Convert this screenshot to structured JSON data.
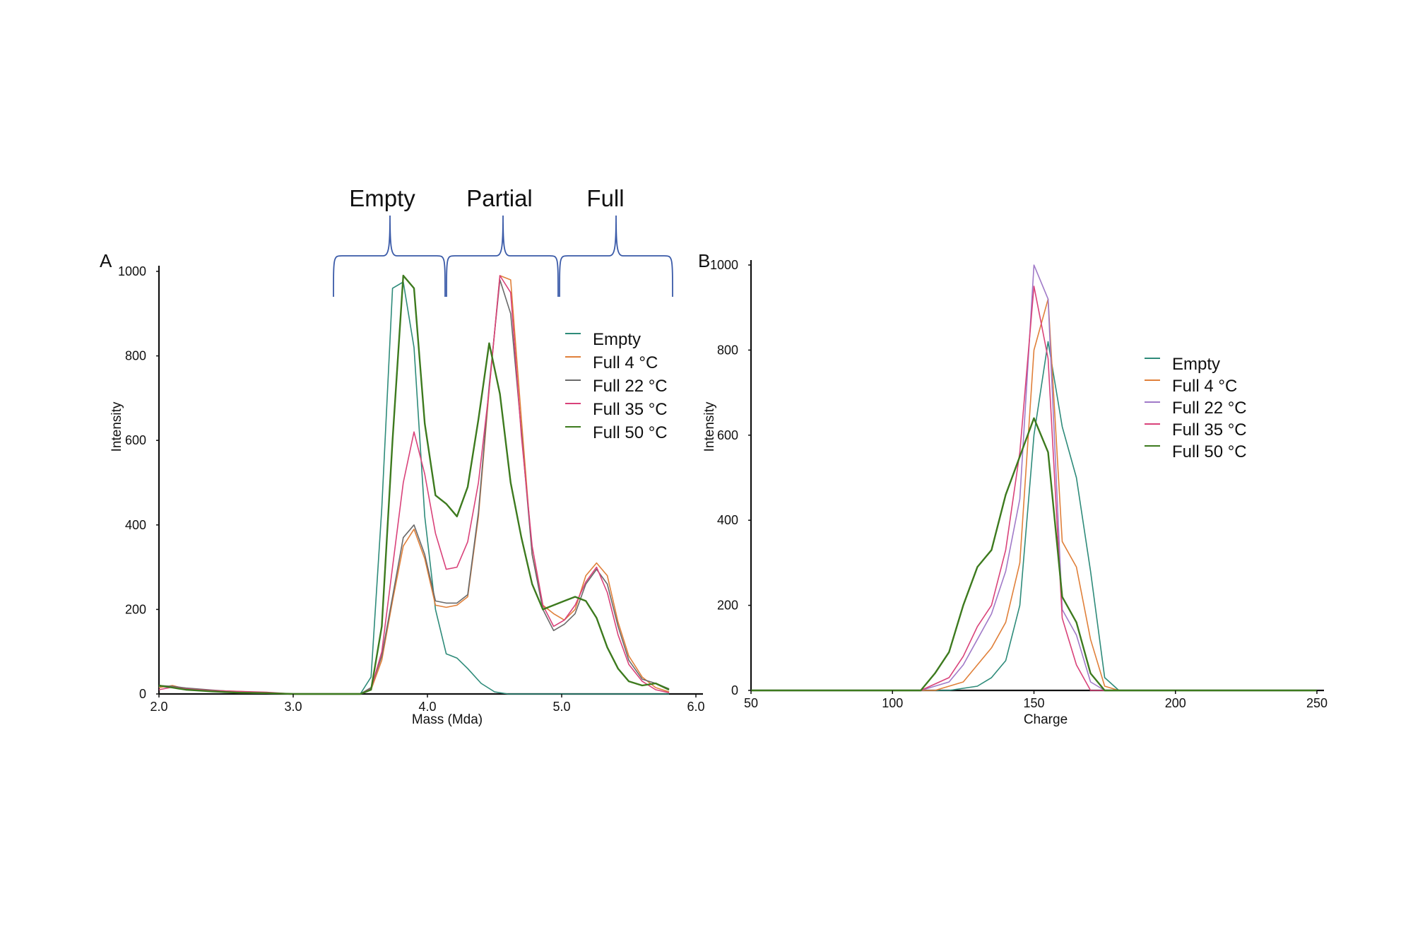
{
  "figure": {
    "regions": [
      "Empty",
      "Partial",
      "Full"
    ],
    "region_bracket_color": "#3a5aa8"
  },
  "chart_data": [
    {
      "panel": "A",
      "type": "line",
      "xlabel": "Mass (Mda)",
      "ylabel": "Intensity",
      "xlim": [
        2.0,
        6.0
      ],
      "ylim": [
        0,
        1000
      ],
      "xticks": [
        "2.0",
        "3.0",
        "4.0",
        "5.0",
        "6.0"
      ],
      "yticks": [
        "0",
        "200",
        "400",
        "600",
        "800",
        "1000"
      ],
      "grid": false,
      "legend_position": "top-right",
      "series": [
        {
          "name": "Empty",
          "color": "#2e8b7a",
          "x": [
            2.0,
            2.1,
            2.2,
            2.3,
            2.5,
            2.7,
            3.0,
            3.2,
            3.4,
            3.5,
            3.58,
            3.66,
            3.74,
            3.82,
            3.9,
            3.98,
            4.06,
            4.14,
            4.22,
            4.3,
            4.4,
            4.5,
            4.6,
            4.7,
            4.8,
            5.0,
            5.2,
            5.4,
            5.6,
            5.8
          ],
          "y": [
            18,
            15,
            12,
            8,
            4,
            2,
            0,
            0,
            0,
            0,
            40,
            440,
            960,
            975,
            820,
            420,
            200,
            95,
            85,
            60,
            25,
            5,
            0,
            0,
            0,
            0,
            0,
            0,
            0,
            0
          ]
        },
        {
          "name": "Full 4 °C",
          "color": "#e0803a",
          "x": [
            2.0,
            2.1,
            2.2,
            2.4,
            2.6,
            2.8,
            3.0,
            3.3,
            3.5,
            3.58,
            3.66,
            3.74,
            3.82,
            3.9,
            3.98,
            4.06,
            4.14,
            4.22,
            4.3,
            4.38,
            4.46,
            4.54,
            4.62,
            4.7,
            4.78,
            4.86,
            4.94,
            5.02,
            5.1,
            5.18,
            5.26,
            5.34,
            5.42,
            5.5,
            5.6,
            5.7,
            5.8
          ],
          "y": [
            15,
            20,
            12,
            8,
            6,
            3,
            0,
            0,
            0,
            10,
            80,
            220,
            350,
            390,
            320,
            210,
            205,
            210,
            230,
            420,
            720,
            990,
            980,
            650,
            330,
            210,
            190,
            175,
            200,
            280,
            310,
            280,
            170,
            90,
            40,
            15,
            5
          ]
        },
        {
          "name": "Full 22 °C",
          "color": "#6a6a6a",
          "x": [
            2.0,
            2.1,
            2.2,
            2.4,
            2.6,
            2.8,
            3.0,
            3.3,
            3.5,
            3.58,
            3.66,
            3.74,
            3.82,
            3.9,
            3.98,
            4.06,
            4.14,
            4.22,
            4.3,
            4.38,
            4.46,
            4.54,
            4.62,
            4.7,
            4.78,
            4.86,
            4.94,
            5.02,
            5.1,
            5.18,
            5.26,
            5.34,
            5.42,
            5.5,
            5.6,
            5.7,
            5.8
          ],
          "y": [
            20,
            18,
            14,
            9,
            5,
            3,
            0,
            0,
            0,
            15,
            90,
            230,
            370,
            400,
            330,
            220,
            215,
            215,
            235,
            430,
            730,
            980,
            900,
            620,
            330,
            200,
            150,
            165,
            190,
            260,
            295,
            260,
            160,
            80,
            35,
            25,
            12
          ]
        },
        {
          "name": "Full 35 °C",
          "color": "#d9427a",
          "x": [
            2.0,
            2.1,
            2.2,
            2.4,
            2.6,
            2.8,
            3.0,
            3.3,
            3.5,
            3.58,
            3.66,
            3.74,
            3.82,
            3.9,
            3.98,
            4.06,
            4.14,
            4.22,
            4.3,
            4.38,
            4.46,
            4.54,
            4.62,
            4.7,
            4.78,
            4.86,
            4.94,
            5.02,
            5.1,
            5.18,
            5.26,
            5.34,
            5.42,
            5.5,
            5.6,
            5.7,
            5.8
          ],
          "y": [
            10,
            16,
            12,
            8,
            6,
            4,
            0,
            0,
            0,
            12,
            100,
            300,
            500,
            620,
            520,
            380,
            295,
            300,
            360,
            500,
            720,
            990,
            950,
            610,
            350,
            210,
            160,
            175,
            210,
            265,
            300,
            240,
            140,
            70,
            30,
            10,
            3
          ]
        },
        {
          "name": "Full 50 °C",
          "color": "#3d7a1e",
          "x": [
            2.0,
            2.1,
            2.2,
            2.4,
            2.6,
            2.8,
            3.0,
            3.3,
            3.5,
            3.58,
            3.66,
            3.74,
            3.82,
            3.9,
            3.98,
            4.06,
            4.14,
            4.22,
            4.3,
            4.38,
            4.46,
            4.54,
            4.62,
            4.7,
            4.78,
            4.86,
            4.94,
            5.02,
            5.1,
            5.18,
            5.26,
            5.34,
            5.42,
            5.5,
            5.6,
            5.7,
            5.8
          ],
          "y": [
            20,
            15,
            10,
            6,
            3,
            2,
            0,
            0,
            0,
            10,
            160,
            600,
            990,
            960,
            640,
            470,
            450,
            420,
            490,
            650,
            830,
            710,
            500,
            370,
            260,
            200,
            210,
            220,
            230,
            220,
            180,
            110,
            60,
            30,
            20,
            25,
            10
          ]
        }
      ]
    },
    {
      "panel": "B",
      "type": "line",
      "xlabel": "Charge",
      "ylabel": "Intensity",
      "xlim": [
        50,
        250
      ],
      "ylim": [
        0,
        1000
      ],
      "xticks": [
        "50",
        "100",
        "150",
        "200",
        "250"
      ],
      "yticks": [
        "0",
        "200",
        "400",
        "600",
        "800",
        "1000"
      ],
      "grid": false,
      "legend_position": "top-right",
      "series": [
        {
          "name": "Empty",
          "color": "#2e8b7a",
          "x": [
            50,
            120,
            130,
            135,
            140,
            145,
            150,
            155,
            160,
            165,
            170,
            175,
            180,
            250
          ],
          "y": [
            0,
            0,
            10,
            30,
            70,
            200,
            600,
            820,
            620,
            500,
            280,
            30,
            0,
            0
          ]
        },
        {
          "name": "Full 4 °C",
          "color": "#e0803a",
          "x": [
            50,
            115,
            125,
            130,
            135,
            140,
            145,
            150,
            155,
            160,
            165,
            170,
            175,
            180,
            250
          ],
          "y": [
            0,
            0,
            20,
            60,
            100,
            160,
            300,
            800,
            920,
            350,
            290,
            120,
            10,
            0,
            0
          ]
        },
        {
          "name": "Full 22 °C",
          "color": "#a07ac8",
          "x": [
            50,
            110,
            120,
            125,
            130,
            135,
            140,
            145,
            150,
            155,
            160,
            165,
            170,
            175,
            250
          ],
          "y": [
            0,
            0,
            20,
            60,
            120,
            180,
            280,
            450,
            1000,
            920,
            190,
            130,
            20,
            0,
            0
          ]
        },
        {
          "name": "Full 35 °C",
          "color": "#d9427a",
          "x": [
            50,
            110,
            120,
            125,
            130,
            135,
            140,
            145,
            150,
            155,
            160,
            165,
            170,
            250
          ],
          "y": [
            0,
            0,
            30,
            80,
            150,
            200,
            330,
            560,
            950,
            780,
            170,
            60,
            0,
            0
          ]
        },
        {
          "name": "Full 50 °C",
          "color": "#3d7a1e",
          "x": [
            50,
            110,
            115,
            120,
            125,
            130,
            135,
            140,
            145,
            150,
            155,
            160,
            165,
            170,
            175,
            250
          ],
          "y": [
            0,
            0,
            40,
            90,
            200,
            290,
            330,
            460,
            550,
            640,
            560,
            220,
            160,
            40,
            0,
            0
          ]
        }
      ]
    }
  ]
}
